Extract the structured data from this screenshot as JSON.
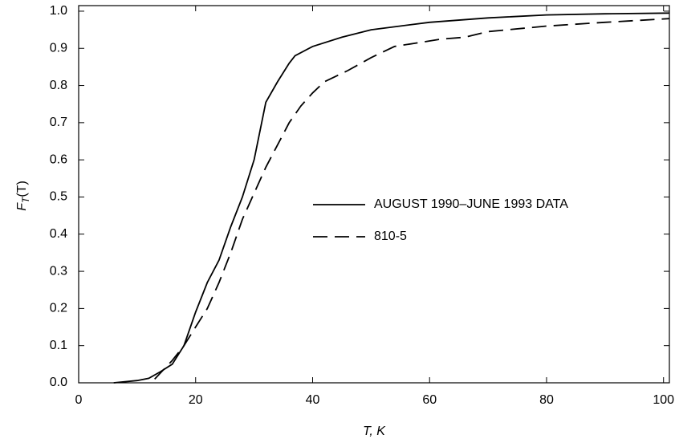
{
  "chart_data": {
    "type": "line",
    "x_label": "T, K",
    "y_label": {
      "main": "F",
      "sub": "T",
      "tail": "(T)"
    },
    "xlim": [
      0,
      101
    ],
    "ylim": [
      0,
      1.015
    ],
    "xticks": [
      0,
      20,
      40,
      60,
      80,
      100
    ],
    "yticks": [
      {
        "value": 0,
        "label": "0.0"
      },
      0.1,
      0.2,
      0.3,
      0.4,
      0.5,
      0.6,
      0.7,
      0.8,
      0.9,
      {
        "value": 1,
        "label": "1.0"
      }
    ],
    "series": [
      {
        "name": "AUGUST 1990–JUNE 1993 DATA",
        "color": "#000000",
        "dash": "solid",
        "x": [
          6,
          10,
          12,
          14,
          16,
          18,
          20,
          22,
          24,
          26,
          28,
          30,
          32,
          34,
          36,
          37,
          40,
          45,
          50,
          60,
          70,
          80,
          90,
          101
        ],
        "values": [
          0,
          0.006,
          0.012,
          0.03,
          0.05,
          0.1,
          0.19,
          0.27,
          0.33,
          0.42,
          0.5,
          0.6,
          0.755,
          0.81,
          0.86,
          0.88,
          0.905,
          0.93,
          0.95,
          0.97,
          0.982,
          0.99,
          0.993,
          0.995
        ]
      },
      {
        "name": "810-5",
        "color": "#000000",
        "dash": "dashed",
        "x": [
          13,
          16,
          18,
          20,
          22,
          24,
          26,
          28,
          30,
          32,
          34,
          36,
          38,
          40,
          42,
          46,
          50,
          54,
          58,
          62,
          66,
          70,
          80,
          90,
          101
        ],
        "values": [
          0.01,
          0.06,
          0.1,
          0.15,
          0.2,
          0.27,
          0.35,
          0.44,
          0.51,
          0.58,
          0.64,
          0.7,
          0.745,
          0.78,
          0.81,
          0.84,
          0.875,
          0.905,
          0.915,
          0.925,
          0.93,
          0.945,
          0.96,
          0.97,
          0.98
        ]
      }
    ]
  }
}
